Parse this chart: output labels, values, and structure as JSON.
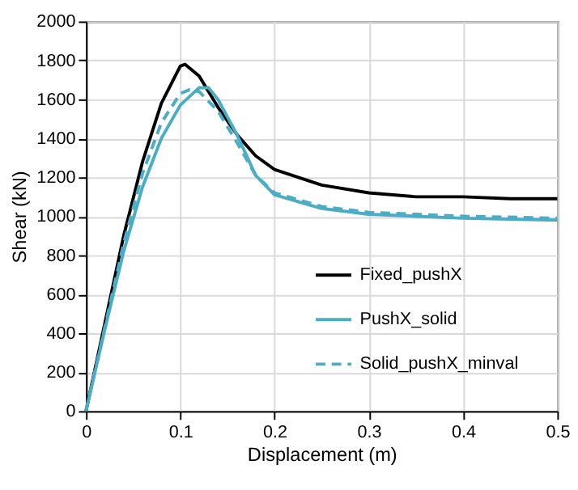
{
  "chart_data": {
    "type": "line",
    "xlabel": "Displacement (m)",
    "ylabel": "Shear (kN)",
    "xlim": [
      0,
      0.5
    ],
    "xticks": [
      0,
      0.1,
      0.2,
      0.3,
      0.4,
      0.5
    ],
    "ylim": [
      0,
      2000
    ],
    "yticks": [
      0,
      200,
      400,
      600,
      800,
      1000,
      1200,
      1400,
      1600,
      1800,
      2000
    ],
    "grid": true,
    "legend": "bottom right",
    "marker": "none",
    "series": [
      {
        "name": "Fixed_pushX",
        "color": "#000000",
        "line_style": "solid",
        "x": [
          0,
          0.02,
          0.04,
          0.06,
          0.08,
          0.1,
          0.105,
          0.12,
          0.14,
          0.16,
          0.18,
          0.2,
          0.25,
          0.3,
          0.35,
          0.4,
          0.45,
          0.5
        ],
        "values": [
          0,
          450,
          900,
          1280,
          1580,
          1770,
          1780,
          1720,
          1560,
          1420,
          1310,
          1240,
          1160,
          1120,
          1100,
          1100,
          1090,
          1090
        ]
      },
      {
        "name": "PushX_solid",
        "color": "#4bacc6",
        "line_style": "solid",
        "x": [
          0,
          0.02,
          0.04,
          0.06,
          0.08,
          0.1,
          0.12,
          0.13,
          0.14,
          0.16,
          0.18,
          0.2,
          0.25,
          0.3,
          0.35,
          0.4,
          0.5
        ],
        "values": [
          0,
          420,
          820,
          1150,
          1400,
          1570,
          1660,
          1660,
          1600,
          1420,
          1210,
          1110,
          1040,
          1010,
          1000,
          990,
          980
        ]
      },
      {
        "name": "Solid_pushX_minval",
        "color": "#4bacc6",
        "line_style": "dashed",
        "x": [
          0,
          0.02,
          0.04,
          0.06,
          0.08,
          0.1,
          0.11,
          0.12,
          0.14,
          0.16,
          0.18,
          0.2,
          0.25,
          0.3,
          0.4,
          0.5
        ],
        "values": [
          0,
          430,
          860,
          1220,
          1480,
          1630,
          1650,
          1640,
          1540,
          1380,
          1210,
          1120,
          1050,
          1020,
          1000,
          990
        ]
      }
    ]
  }
}
